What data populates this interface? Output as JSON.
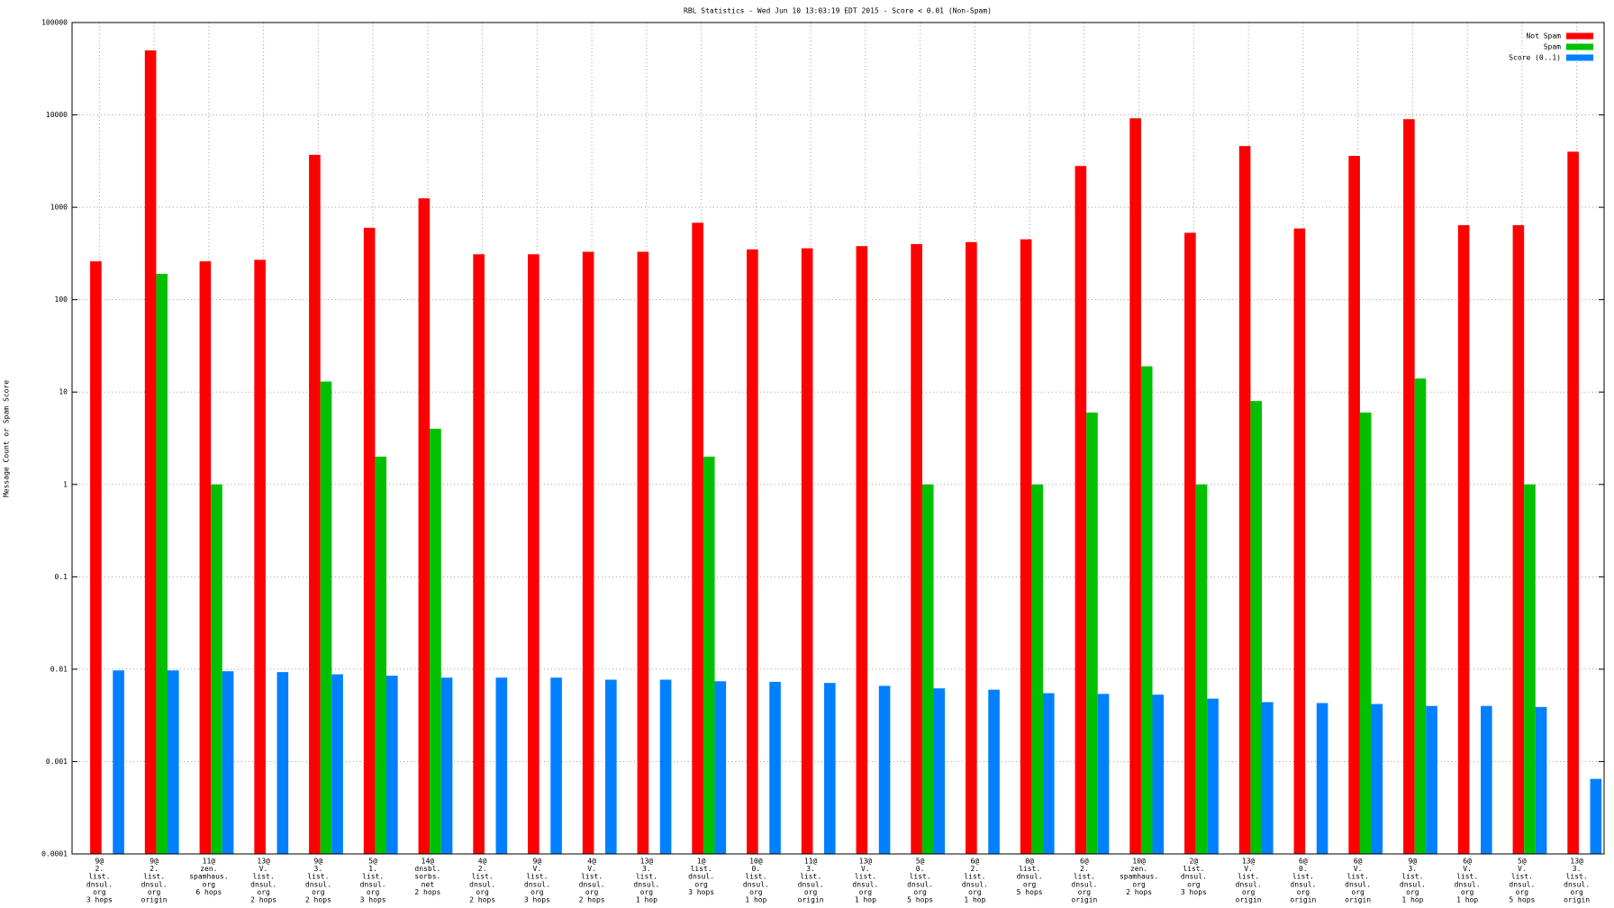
{
  "chart_data": {
    "type": "bar",
    "title": "RBL Statistics - Wed Jun 10 13:03:19 EDT 2015 - Score < 0.01 (Non-Spam)",
    "y_label": "Message Count or Spam Score",
    "log_scale": true,
    "grid": true,
    "legend": "top-right",
    "categories": [
      [
        "9@",
        "2.",
        "list.",
        "dnsul.",
        "org",
        "3 hops"
      ],
      [
        "9@",
        "2.",
        "list.",
        "dnsul.",
        "org",
        "origin"
      ],
      [
        "11@",
        "zen.",
        "spamhaus.",
        "org",
        "6 hops"
      ],
      [
        "13@",
        "V.",
        "list.",
        "dnsul.",
        "org",
        "2 hops"
      ],
      [
        "9@",
        "3.",
        "list.",
        "dnsul.",
        "org",
        "2 hops"
      ],
      [
        "5@",
        "1.",
        "list.",
        "dnsul.",
        "org",
        "3 hops"
      ],
      [
        "14@",
        "dnsbl.",
        "sorbs.",
        "net",
        "2 hops"
      ],
      [
        "4@",
        "2.",
        "list.",
        "dnsul.",
        "org",
        "2 hops"
      ],
      [
        "9@",
        "V.",
        "list.",
        "dnsul.",
        "org",
        "3 hops"
      ],
      [
        "4@",
        "V.",
        "list.",
        "dnsul.",
        "org",
        "2 hops"
      ],
      [
        "13@",
        "3.",
        "list.",
        "dnsul.",
        "org",
        "1 hop"
      ],
      [
        "1@",
        "list.",
        "dnsul.",
        "org",
        "3 hops"
      ],
      [
        "10@",
        "0.",
        "list.",
        "dnsul.",
        "org",
        "1 hop"
      ],
      [
        "11@",
        "3.",
        "list.",
        "dnsul.",
        "org",
        "origin"
      ],
      [
        "13@",
        "V.",
        "list.",
        "dnsul.",
        "org",
        "1 hop"
      ],
      [
        "5@",
        "0.",
        "list.",
        "dnsul.",
        "org",
        "5 hops"
      ],
      [
        "6@",
        "2.",
        "list.",
        "dnsul.",
        "org",
        "1 hop"
      ],
      [
        "0@",
        "list.",
        "dnsul.",
        "org",
        "5 hops"
      ],
      [
        "6@",
        "2.",
        "list.",
        "dnsul.",
        "org",
        "origin"
      ],
      [
        "10@",
        "zen.",
        "spamhaus.",
        "org",
        "2 hops"
      ],
      [
        "2@",
        "list.",
        "dnsul.",
        "org",
        "3 hops"
      ],
      [
        "13@",
        "V.",
        "list.",
        "dnsul.",
        "org",
        "origin"
      ],
      [
        "6@",
        "0.",
        "list.",
        "dnsul.",
        "org",
        "origin"
      ],
      [
        "6@",
        "V.",
        "list.",
        "dnsul.",
        "org",
        "origin"
      ],
      [
        "9@",
        "3.",
        "list.",
        "dnsul.",
        "org",
        "1 hop"
      ],
      [
        "6@",
        "V.",
        "list.",
        "dnsul.",
        "org",
        "1 hop"
      ],
      [
        "5@",
        "V.",
        "list.",
        "dnsul.",
        "org",
        "5 hops"
      ],
      [
        "13@",
        "3.",
        "list.",
        "dnsul.",
        "org",
        "origin"
      ]
    ],
    "series": [
      {
        "name": "Not Spam",
        "color": "#ff0000",
        "values": [
          260,
          50000,
          260,
          270,
          3700,
          600,
          1250,
          310,
          310,
          330,
          330,
          680,
          350,
          360,
          380,
          400,
          420,
          450,
          2800,
          9200,
          530,
          4600,
          590,
          3600,
          9000,
          640,
          640,
          4000
        ]
      },
      {
        "name": "Spam",
        "color": "#00c000",
        "values": [
          null,
          190,
          1,
          null,
          13,
          2,
          4,
          null,
          null,
          null,
          null,
          2,
          null,
          null,
          null,
          1,
          null,
          1,
          6,
          19,
          1,
          8,
          null,
          6,
          14,
          null,
          1,
          null
        ]
      },
      {
        "name": "Score (0..1)",
        "color": "#0080ff",
        "values": [
          0.0097,
          0.0097,
          0.0095,
          0.0093,
          0.0088,
          0.0085,
          0.0081,
          0.0081,
          0.0081,
          0.0077,
          0.0077,
          0.0074,
          0.0073,
          0.0071,
          0.0066,
          0.0062,
          0.006,
          0.0055,
          0.0054,
          0.0053,
          0.0048,
          0.0044,
          0.0043,
          0.0042,
          0.004,
          0.004,
          0.0039,
          0.00065
        ]
      }
    ],
    "ylim": [
      0.0001,
      100000
    ],
    "yticks": [
      100000,
      10000,
      1000,
      100,
      10,
      1,
      0.1,
      0.01,
      0.001,
      0.0001
    ]
  }
}
